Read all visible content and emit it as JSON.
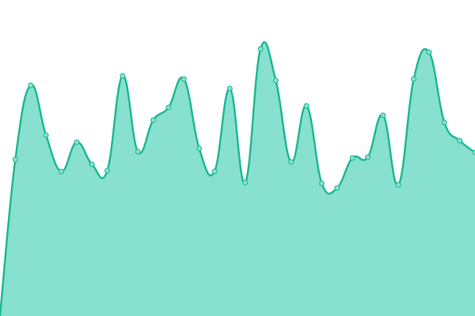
{
  "chart_data": {
    "type": "area",
    "values": [
      0,
      198,
      292,
      229,
      183,
      220,
      192,
      184,
      304,
      208,
      248,
      264,
      300,
      212,
      183,
      288,
      169,
      338,
      298,
      195,
      266,
      168,
      162,
      200,
      201,
      254,
      166,
      300,
      334,
      245,
      222,
      207
    ],
    "ylim": [
      0,
      400
    ],
    "color": "#1fb994",
    "fill": "#88e0cf"
  }
}
